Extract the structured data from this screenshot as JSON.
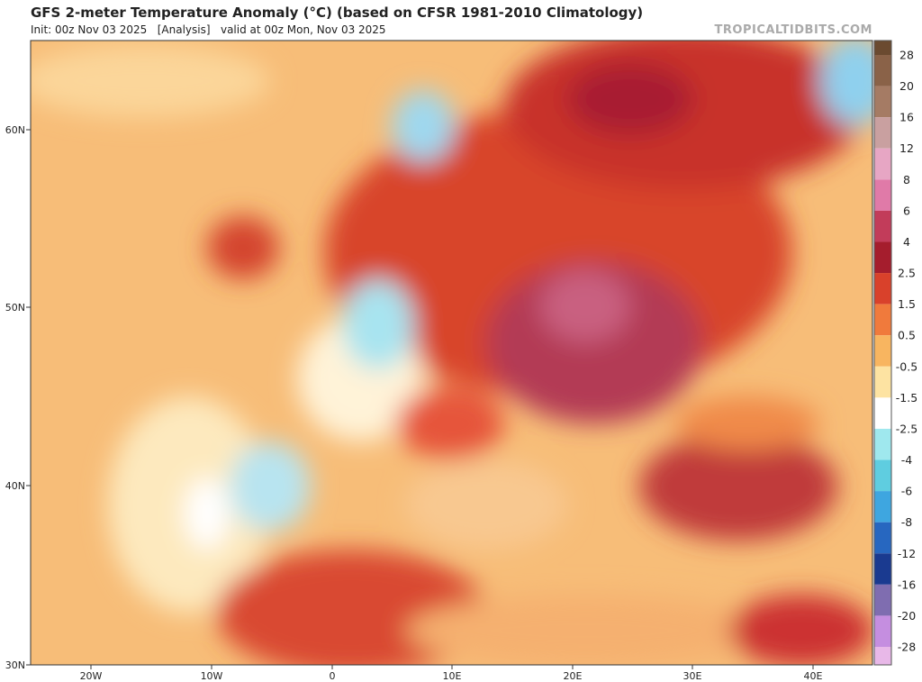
{
  "header": {
    "title": "GFS 2-meter Temperature Anomaly (°C) (based on CFSR 1981-2010 Climatology)",
    "subtitle": "Init: 00z Nov 03 2025   [Analysis]   valid at 00z Mon, Nov 03 2025",
    "site": "TROPICALTIDBITS.COM"
  },
  "map": {
    "lat_labels": [
      "60N",
      "50N",
      "40N",
      "30N"
    ],
    "lon_labels": [
      "20W",
      "10W",
      "0",
      "10E",
      "20E",
      "30E",
      "40E"
    ]
  },
  "colorbar": {
    "labels": [
      "28",
      "20",
      "16",
      "12",
      "8",
      "6",
      "4",
      "2.5",
      "1.5",
      "0.5",
      "-0.5",
      "-1.5",
      "-2.5",
      "-4",
      "-6",
      "-8",
      "-12",
      "-16",
      "-20",
      "-28"
    ],
    "colors": [
      "#6b4a30",
      "#8a6248",
      "#a57b64",
      "#c9a0a0",
      "#e7a6c4",
      "#e07aa8",
      "#c23c5a",
      "#a51d2d",
      "#d9412b",
      "#f07a3c",
      "#f8b560",
      "#fde3a2",
      "#ffffff",
      "#9fe8ee",
      "#5fcde0",
      "#3ea6e0",
      "#2767c0",
      "#1a3a90",
      "#7f6db0",
      "#c58ee0",
      "#e8b8e8"
    ]
  }
}
